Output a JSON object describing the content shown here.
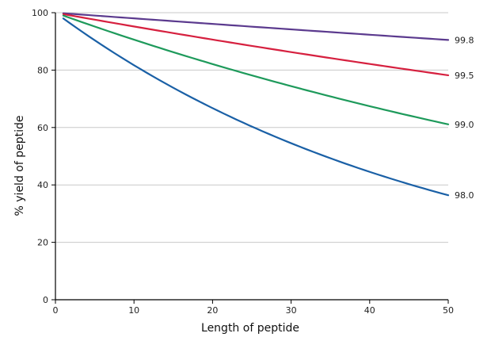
{
  "chart_data": {
    "type": "line",
    "title": "",
    "xlabel": "Length of peptide",
    "ylabel": "% yield of peptide",
    "xlim": [
      0,
      50
    ],
    "ylim": [
      0,
      100
    ],
    "xticks": [
      0,
      10,
      20,
      30,
      40,
      50
    ],
    "yticks": [
      0,
      20,
      40,
      60,
      80,
      100
    ],
    "grid": "horizontal",
    "series": [
      {
        "name": "99.8",
        "color": "#5b3a8e",
        "x": [
          1,
          50
        ],
        "y": [
          99.8,
          90.5
        ]
      },
      {
        "name": "99.5",
        "color": "#d6203f",
        "x": [
          1,
          50
        ],
        "y": [
          99.5,
          78.2
        ]
      },
      {
        "name": "99.0",
        "color": "#1e9a5b",
        "x": [
          1,
          50
        ],
        "y": [
          99.0,
          61.1
        ]
      },
      {
        "name": "98.0",
        "color": "#1a60a6",
        "x": [
          1,
          50
        ],
        "y": [
          98.0,
          36.4
        ]
      }
    ]
  }
}
